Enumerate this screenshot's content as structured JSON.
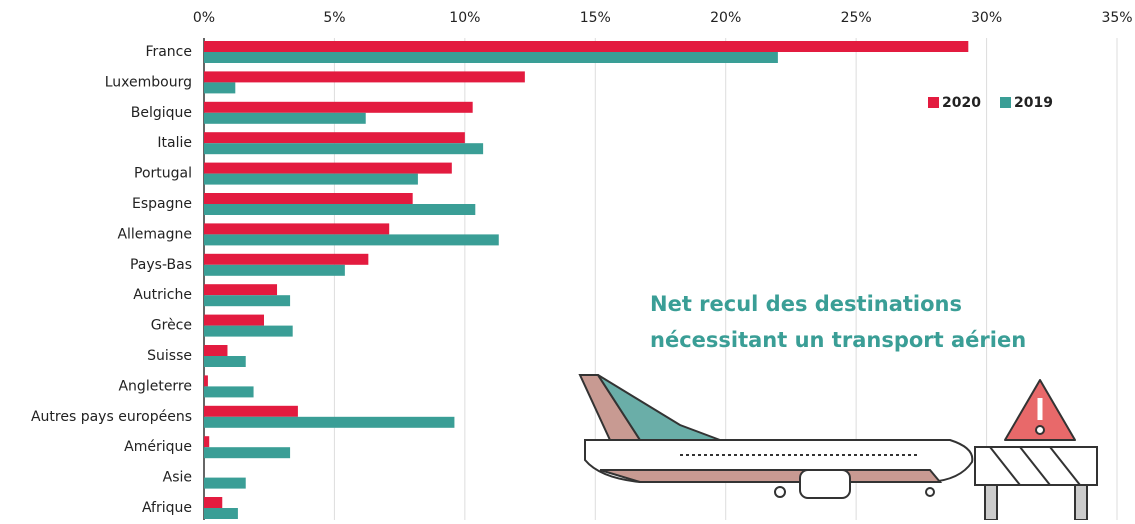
{
  "chart_data": {
    "type": "hbar",
    "categories": [
      "France",
      "Luxembourg",
      "Belgique",
      "Italie",
      "Portugal",
      "Espagne",
      "Allemagne",
      "Pays-Bas",
      "Autriche",
      "Grèce",
      "Suisse",
      "Angleterre",
      "Autres pays européens",
      "Amérique",
      "Asie",
      "Afrique"
    ],
    "series": [
      {
        "name": "2020",
        "color": "#e31b3f",
        "values": [
          29.3,
          12.3,
          10.3,
          10.0,
          9.5,
          8.0,
          7.1,
          6.3,
          2.8,
          2.3,
          0.9,
          0.15,
          3.6,
          0.2,
          0,
          0.7
        ]
      },
      {
        "name": "2019",
        "color": "#3a9e96",
        "values": [
          22.0,
          1.2,
          6.2,
          10.7,
          8.2,
          10.4,
          11.3,
          5.4,
          3.3,
          3.4,
          1.6,
          1.9,
          9.6,
          3.3,
          1.6,
          1.3
        ]
      }
    ],
    "xlim": [
      0,
      35
    ],
    "xticks": [
      {
        "value": 0,
        "label": "0%"
      },
      {
        "value": 5,
        "label": "5%"
      },
      {
        "value": 10,
        "label": "10%"
      },
      {
        "value": 15,
        "label": "15%"
      },
      {
        "value": 20,
        "label": "20%"
      },
      {
        "value": 25,
        "label": "25%"
      },
      {
        "value": 30,
        "label": "30%"
      },
      {
        "value": 35,
        "label": "35%"
      }
    ],
    "grid": true,
    "annotations": [
      "Net recul des destinations",
      "nécessitant un transport aérien"
    ]
  }
}
